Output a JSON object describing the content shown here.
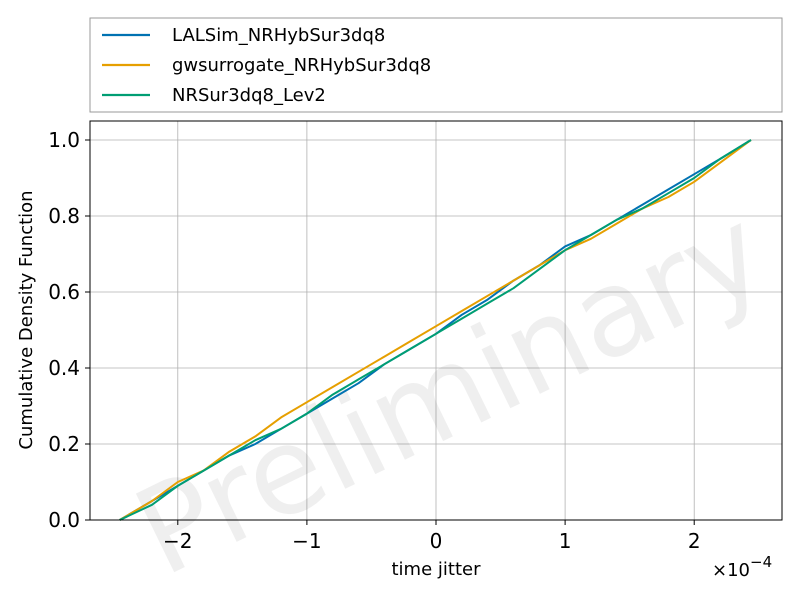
{
  "chart_data": {
    "type": "line",
    "title": "",
    "xlabel": "time jitter",
    "ylabel": "Cumulative Density Function",
    "x_scale_text": "×10",
    "x_scale_exponent": "−4",
    "xlim": [
      -2.68,
      2.68
    ],
    "ylim": [
      0.0,
      1.05
    ],
    "xticks": [
      -2,
      -1,
      0,
      1,
      2
    ],
    "xtick_labels": [
      "−2",
      "−1",
      "0",
      "1",
      "2"
    ],
    "yticks": [
      0.0,
      0.2,
      0.4,
      0.6,
      0.8,
      1.0
    ],
    "ytick_labels": [
      "0.0",
      "0.2",
      "0.4",
      "0.6",
      "0.8",
      "1.0"
    ],
    "grid": true,
    "legend_position": "above plot",
    "watermark": "Preliminary",
    "series": [
      {
        "name": "LALSim_NRHybSur3dq8",
        "color": "#0072b2",
        "x": [
          -2.45,
          -2.2,
          -2.0,
          -1.8,
          -1.6,
          -1.4,
          -1.2,
          -1.0,
          -0.8,
          -0.6,
          -0.4,
          -0.2,
          0.0,
          0.2,
          0.4,
          0.6,
          0.8,
          1.0,
          1.2,
          1.4,
          1.6,
          1.8,
          2.0,
          2.2,
          2.44
        ],
        "y": [
          0.0,
          0.05,
          0.09,
          0.13,
          0.17,
          0.2,
          0.24,
          0.28,
          0.32,
          0.36,
          0.41,
          0.45,
          0.49,
          0.54,
          0.58,
          0.63,
          0.67,
          0.72,
          0.75,
          0.79,
          0.83,
          0.87,
          0.91,
          0.95,
          1.0
        ]
      },
      {
        "name": "gwsurrogate_NRHybSur3dq8",
        "color": "#e69f00",
        "x": [
          -2.45,
          -2.2,
          -2.0,
          -1.8,
          -1.6,
          -1.4,
          -1.2,
          -1.0,
          -0.8,
          -0.6,
          -0.4,
          -0.2,
          0.0,
          0.2,
          0.4,
          0.6,
          0.8,
          1.0,
          1.2,
          1.4,
          1.6,
          1.8,
          2.0,
          2.2,
          2.44
        ],
        "y": [
          0.0,
          0.05,
          0.1,
          0.13,
          0.18,
          0.22,
          0.27,
          0.31,
          0.35,
          0.39,
          0.43,
          0.47,
          0.51,
          0.55,
          0.59,
          0.63,
          0.67,
          0.71,
          0.74,
          0.78,
          0.82,
          0.85,
          0.89,
          0.94,
          1.0
        ]
      },
      {
        "name": "NRSur3dq8_Lev2",
        "color": "#009e73",
        "x": [
          -2.45,
          -2.2,
          -2.0,
          -1.8,
          -1.6,
          -1.4,
          -1.2,
          -1.0,
          -0.8,
          -0.6,
          -0.4,
          -0.2,
          0.0,
          0.2,
          0.4,
          0.6,
          0.8,
          1.0,
          1.2,
          1.4,
          1.6,
          1.8,
          2.0,
          2.2,
          2.44
        ],
        "y": [
          0.0,
          0.04,
          0.09,
          0.13,
          0.17,
          0.21,
          0.24,
          0.28,
          0.33,
          0.37,
          0.41,
          0.45,
          0.49,
          0.53,
          0.57,
          0.61,
          0.66,
          0.71,
          0.75,
          0.79,
          0.82,
          0.86,
          0.9,
          0.95,
          1.0
        ]
      }
    ]
  }
}
